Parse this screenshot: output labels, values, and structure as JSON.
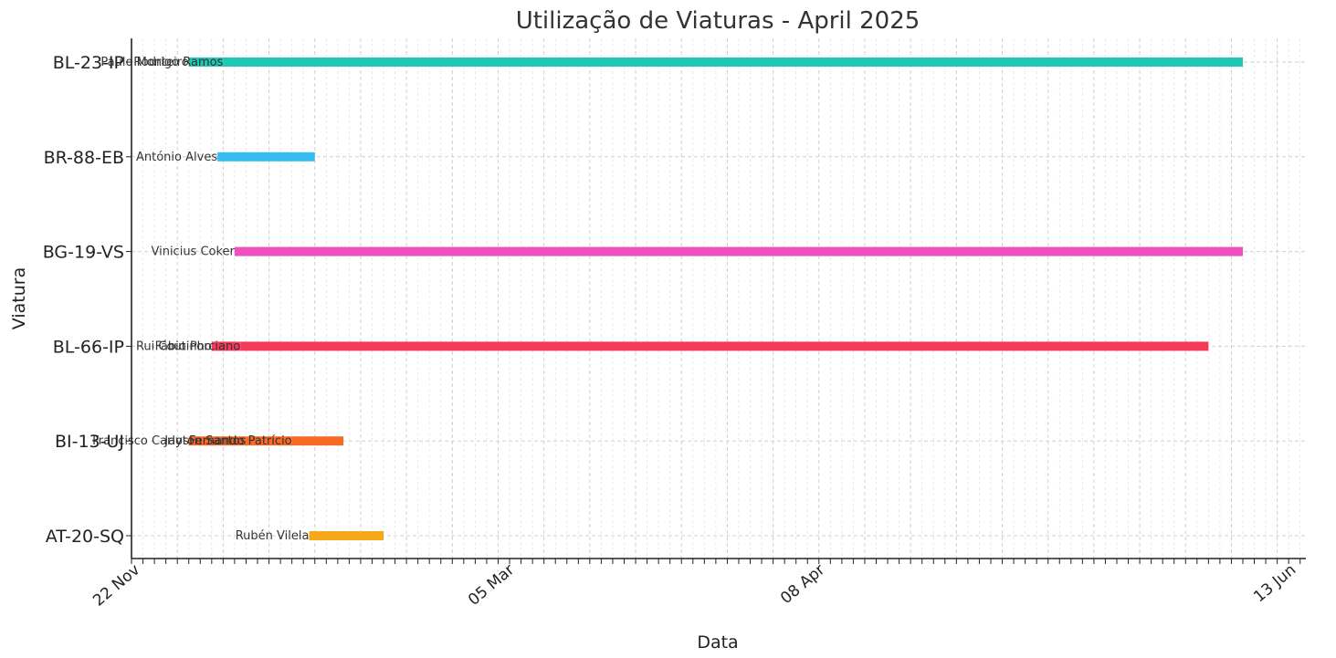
{
  "chart_data": {
    "type": "gantt",
    "title": "Utilização de Viaturas - April 2025",
    "xlabel": "Data",
    "ylabel": "Viatura",
    "x_axis": "date",
    "xlim": [
      "2024-11-22",
      "2025-06-15"
    ],
    "grid": true,
    "categories": [
      "AT-20-SQ",
      "BI-13-UJ",
      "BL-66-IP",
      "BG-19-VS",
      "BR-88-EB",
      "BL-23-IP"
    ],
    "tick_labels": [
      "22 Nov",
      "05 Mar",
      "08 Apr",
      "13 Jun"
    ],
    "tasks": [
      {
        "vehicle": "BL-23-IP",
        "driver": "Paulo Monteiro",
        "start": "2024-12-02",
        "end": "2024-12-08",
        "color": "#1ec8b4"
      },
      {
        "vehicle": "BL-23-IP",
        "driver": "Rodrigo Ramos",
        "start": "2024-12-08",
        "end": "2025-06-04",
        "color": "#1ec8b4"
      },
      {
        "vehicle": "BR-88-EB",
        "driver": "António Alves",
        "start": "2024-12-07",
        "end": "2024-12-24",
        "color": "#33bdf0"
      },
      {
        "vehicle": "BG-19-VS",
        "driver": "Vinicius Coker",
        "start": "2024-12-10",
        "end": "2025-06-04",
        "color": "#f04fbf"
      },
      {
        "vehicle": "BL-66-IP",
        "driver": "Rui Coutinho",
        "start": "2024-12-06",
        "end": "2024-12-11",
        "color": "#f73a5a"
      },
      {
        "vehicle": "BL-66-IP",
        "driver": "Fábio Porciano",
        "start": "2024-12-11",
        "end": "2025-05-29",
        "color": "#f73a5a"
      },
      {
        "vehicle": "BI-13-UJ",
        "driver": "Francisco Carlos",
        "start": "2024-12-02",
        "end": "2024-12-12",
        "color": "#f76b28"
      },
      {
        "vehicle": "BI-13-UJ",
        "driver": "Jayton Santos",
        "start": "2024-12-12",
        "end": "2024-12-20",
        "color": "#f76b28"
      },
      {
        "vehicle": "BI-13-UJ",
        "driver": "Fernando Patrício",
        "start": "2024-12-20",
        "end": "2024-12-29",
        "color": "#f76b28"
      },
      {
        "vehicle": "AT-20-SQ",
        "driver": "Rubén Vilela",
        "start": "2024-12-23",
        "end": "2025-01-05",
        "color": "#f7a81a"
      }
    ]
  }
}
